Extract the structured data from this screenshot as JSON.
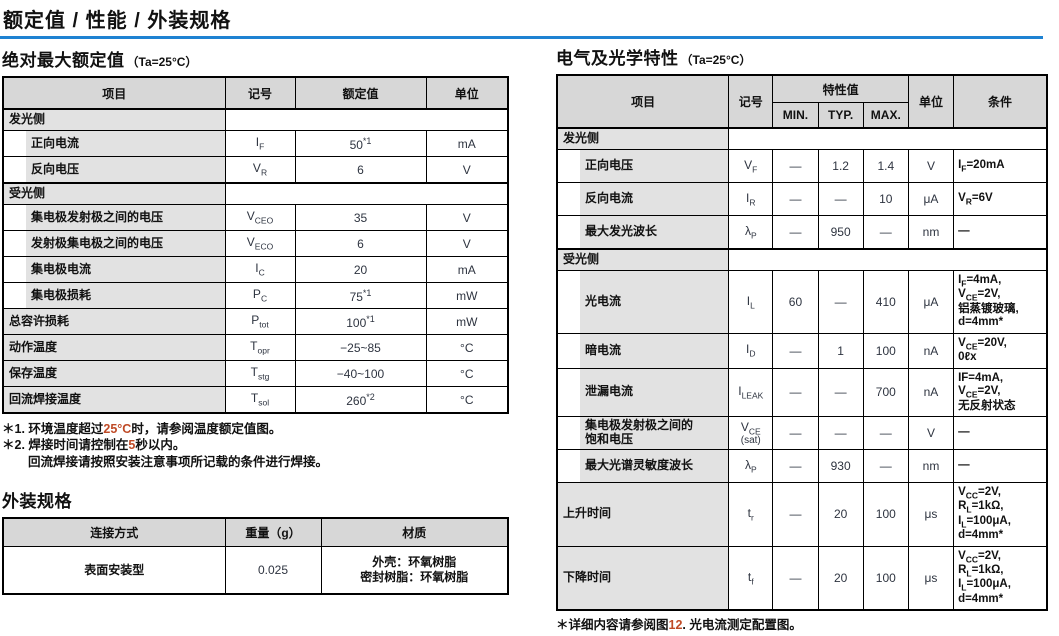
{
  "page": {
    "title": "额定值 / 性能 / 外装规格",
    "rule_color": "#1e82d2",
    "accent_red": "#bf4a26",
    "header_bg": "#d7d7d7",
    "label_bg": "#e2e2e2"
  },
  "abs_max": {
    "heading": "绝对最大额定值",
    "condition": "（Ta=25°C）",
    "headers": [
      "项目",
      "记号",
      "额定值",
      "单位"
    ],
    "rows": [
      {
        "type": "section",
        "label": "发光侧"
      },
      {
        "type": "item",
        "indent": true,
        "label": "正向电流",
        "sym": {
          "base": "I",
          "sub": "F"
        },
        "value": "50",
        "sup": "*1",
        "unit": "mA"
      },
      {
        "type": "item",
        "indent": true,
        "label": "反向电压",
        "sym": {
          "base": "V",
          "sub": "R"
        },
        "value": "6",
        "unit": "V"
      },
      {
        "type": "section",
        "label": "受光侧"
      },
      {
        "type": "item",
        "indent": true,
        "label": "集电极发射极之间的电压",
        "sym": {
          "base": "V",
          "sub": "CEO"
        },
        "value": "35",
        "unit": "V"
      },
      {
        "type": "item",
        "indent": true,
        "label": "发射极集电极之间的电压",
        "sym": {
          "base": "V",
          "sub": "ECO"
        },
        "value": "6",
        "unit": "V"
      },
      {
        "type": "item",
        "indent": true,
        "label": "集电极电流",
        "sym": {
          "base": "I",
          "sub": "C"
        },
        "value": "20",
        "unit": "mA"
      },
      {
        "type": "item",
        "indent": true,
        "label": "集电极损耗",
        "sym": {
          "base": "P",
          "sub": "C"
        },
        "value": "75",
        "sup": "*1",
        "unit": "mW"
      },
      {
        "type": "item",
        "indent": false,
        "label": "总容许损耗",
        "sym": {
          "base": "P",
          "sub": "tot"
        },
        "value": "100",
        "sup": "*1",
        "unit": "mW"
      },
      {
        "type": "item",
        "indent": false,
        "label": "动作温度",
        "sym": {
          "base": "T",
          "sub": "opr"
        },
        "value": "−25~85",
        "unit": "°C"
      },
      {
        "type": "item",
        "indent": false,
        "label": "保存温度",
        "sym": {
          "base": "T",
          "sub": "stg"
        },
        "value": "−40~100",
        "unit": "°C"
      },
      {
        "type": "item",
        "indent": false,
        "label": "回流焊接温度",
        "sym": {
          "base": "T",
          "sub": "sol"
        },
        "value": "260",
        "sup": "*2",
        "unit": "°C"
      }
    ],
    "notes": [
      {
        "indent": false,
        "parts": [
          {
            "t": "＊1. 环境温度超过"
          },
          {
            "t": "25°C",
            "red": true
          },
          {
            "t": "时，请参阅温度额定值图。"
          }
        ]
      },
      {
        "indent": false,
        "parts": [
          {
            "t": "＊2. 焊接时间请控制在"
          },
          {
            "t": "5",
            "red": true
          },
          {
            "t": "秒以内。"
          }
        ]
      },
      {
        "indent": true,
        "parts": [
          {
            "t": "回流焊接请按照安装注意事项所记载的条件进行焊接。"
          }
        ]
      }
    ]
  },
  "package": {
    "heading": "外装规格",
    "headers": [
      "连接方式",
      "重量（g）",
      "材质"
    ],
    "rows": [
      {
        "mount": "表面安装型",
        "weight": "0.025",
        "material": [
          "外壳：环氧树脂",
          "密封树脂：环氧树脂"
        ]
      }
    ]
  },
  "electro": {
    "heading": "电气及光学特性",
    "condition": "（Ta=25°C）",
    "headers": {
      "item": "项目",
      "symbol": "记号",
      "char": "特性值",
      "min": "MIN.",
      "typ": "TYP.",
      "max": "MAX.",
      "unit": "单位",
      "cond": "条件"
    },
    "rows": [
      {
        "type": "section",
        "label": "发光侧"
      },
      {
        "type": "item",
        "indent": true,
        "label": [
          "正向电压"
        ],
        "sym": {
          "base": "V",
          "sub": "F"
        },
        "min": "—",
        "typ": "1.2",
        "max": "1.4",
        "unit": "V",
        "cond": [
          {
            "pre": "I",
            "sub": "F",
            "post": "=20mA"
          }
        ]
      },
      {
        "type": "item",
        "indent": true,
        "label": [
          "反向电流"
        ],
        "sym": {
          "base": "I",
          "sub": "R"
        },
        "min": "—",
        "typ": "—",
        "max": "10",
        "unit": "μA",
        "cond": [
          {
            "pre": "V",
            "sub": "R",
            "post": "=6V"
          }
        ]
      },
      {
        "type": "item",
        "indent": true,
        "label": [
          "最大发光波长"
        ],
        "sym": {
          "base": "λ",
          "sub": "P"
        },
        "min": "—",
        "typ": "950",
        "max": "—",
        "unit": "nm",
        "cond": [
          {
            "pre": "—"
          }
        ]
      },
      {
        "type": "section",
        "label": "受光侧"
      },
      {
        "type": "item",
        "indent": true,
        "label": [
          "光电流"
        ],
        "sym": {
          "base": "I",
          "sub": "L"
        },
        "min": "60",
        "typ": "—",
        "max": "410",
        "unit": "μA",
        "cond": [
          {
            "pre": "I",
            "sub": "F",
            "post": "=4mA,"
          },
          {
            "pre": "V",
            "sub": "CE",
            "post": "=2V,"
          },
          {
            "pre": "铝蒸镀玻璃,"
          },
          {
            "pre": "d=4mm*"
          }
        ]
      },
      {
        "type": "item",
        "indent": true,
        "label": [
          "暗电流"
        ],
        "sym": {
          "base": "I",
          "sub": "D"
        },
        "min": "—",
        "typ": "1",
        "max": "100",
        "unit": "nA",
        "cond": [
          {
            "pre": "V",
            "sub": "CE",
            "post": "=20V,"
          },
          {
            "pre": "0ℓx"
          }
        ]
      },
      {
        "type": "item",
        "indent": true,
        "label": [
          "泄漏电流"
        ],
        "sym": {
          "base": "I",
          "sub": "LEAK"
        },
        "min": "—",
        "typ": "—",
        "max": "700",
        "unit": "nA",
        "cond": [
          {
            "pre": "IF=4mA,"
          },
          {
            "pre": "V",
            "sub": "CE",
            "post": "=2V,"
          },
          {
            "pre": "无反射状态"
          }
        ]
      },
      {
        "type": "item",
        "indent": true,
        "label": [
          "集电极发射极之间的",
          "饱和电压"
        ],
        "sym": {
          "base": "V",
          "sub": "CE",
          "below": "(sat)"
        },
        "min": "—",
        "typ": "—",
        "max": "—",
        "unit": "V",
        "cond": [
          {
            "pre": "—"
          }
        ]
      },
      {
        "type": "item",
        "indent": true,
        "label": [
          "最大光谱灵敏度波长"
        ],
        "sym": {
          "base": "λ",
          "sub": "P"
        },
        "min": "—",
        "typ": "930",
        "max": "—",
        "unit": "nm",
        "cond": [
          {
            "pre": "—"
          }
        ]
      },
      {
        "type": "item",
        "indent": false,
        "label": [
          "上升时间"
        ],
        "sym": {
          "base": "t",
          "sub": "r"
        },
        "min": "—",
        "typ": "20",
        "max": "100",
        "unit": "μs",
        "cond": [
          {
            "pre": "V",
            "sub": "CC",
            "post": "=2V,"
          },
          {
            "pre": "R",
            "sub": "L",
            "post": "=1kΩ,"
          },
          {
            "pre": "I",
            "sub": "L",
            "post": "=100μA,"
          },
          {
            "pre": "d=4mm*"
          }
        ]
      },
      {
        "type": "item",
        "indent": false,
        "label": [
          "下降时间"
        ],
        "sym": {
          "base": "t",
          "sub": "f"
        },
        "min": "—",
        "typ": "20",
        "max": "100",
        "unit": "μs",
        "cond": [
          {
            "pre": "V",
            "sub": "CC",
            "post": "=2V,"
          },
          {
            "pre": "R",
            "sub": "L",
            "post": "=1kΩ,"
          },
          {
            "pre": "I",
            "sub": "L",
            "post": "=100μA,"
          },
          {
            "pre": "d=4mm*"
          }
        ]
      }
    ],
    "footnote": {
      "parts": [
        {
          "t": "＊详细内容请参阅图"
        },
        {
          "t": "12",
          "red": true
        },
        {
          "t": ". 光电流测定配置图。"
        }
      ]
    }
  }
}
